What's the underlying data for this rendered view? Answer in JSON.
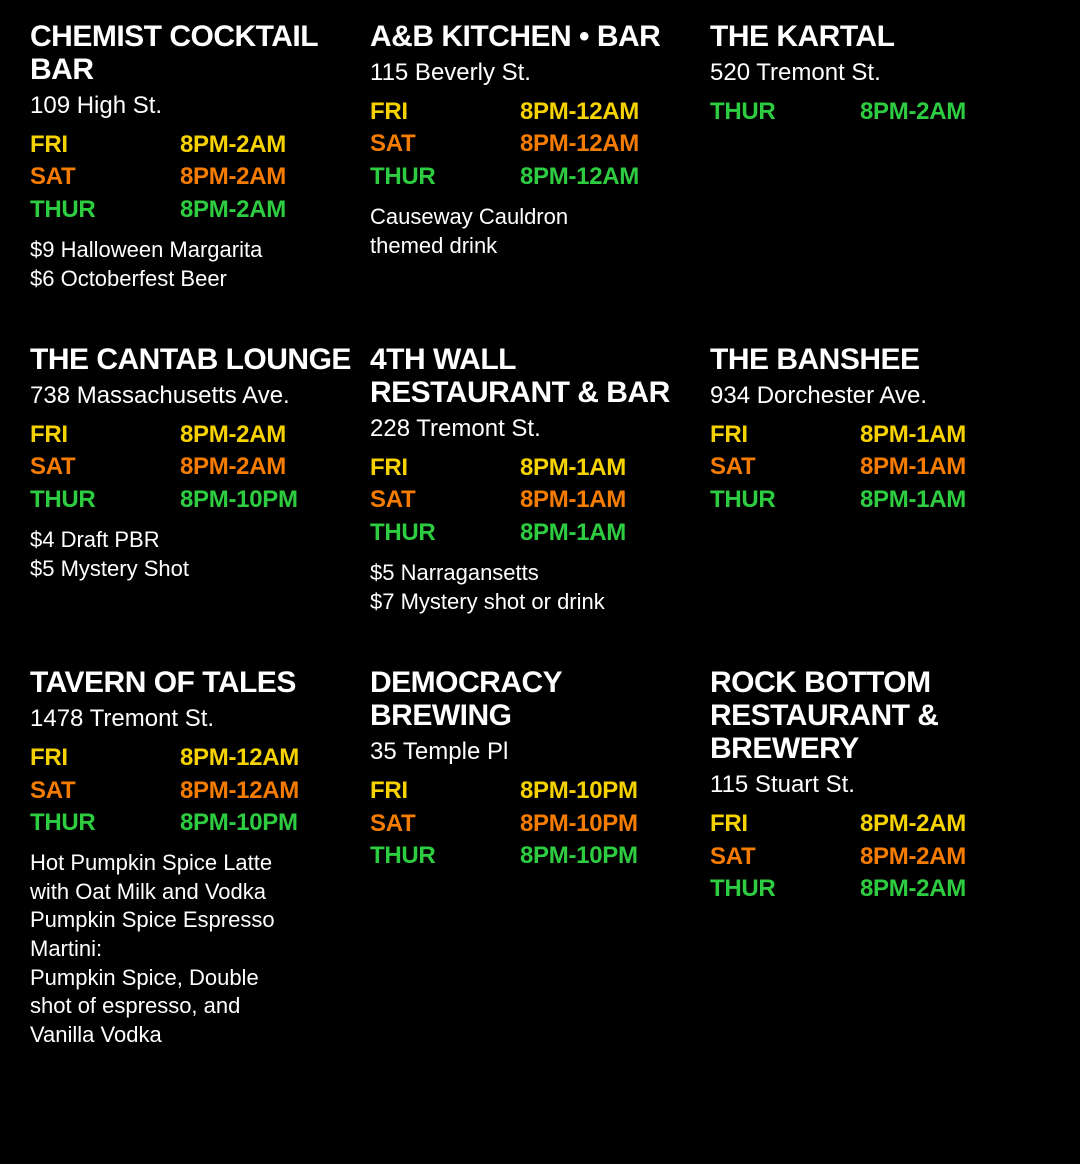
{
  "colors": {
    "fri": "#f5d200",
    "sat": "#f57c00",
    "thur": "#2ecc40",
    "text": "#ffffff",
    "bg": "#000000"
  },
  "venues": [
    {
      "name": "CHEMIST COCKTAIL BAR",
      "address": "109 High St.",
      "hours": [
        {
          "day": "FRI",
          "time": "8PM-2AM",
          "color": "fri"
        },
        {
          "day": "SAT",
          "time": "8PM-2AM",
          "color": "sat"
        },
        {
          "day": "THUR",
          "time": "8PM-2AM",
          "color": "thur"
        }
      ],
      "specials": [
        "$9 Halloween Margarita",
        "$6 Octoberfest Beer"
      ]
    },
    {
      "name": "A&B KITCHEN • BAR",
      "address": "115 Beverly St.",
      "hours": [
        {
          "day": "FRI",
          "time": "8PM-12AM",
          "color": "fri"
        },
        {
          "day": "SAT",
          "time": "8PM-12AM",
          "color": "sat"
        },
        {
          "day": "THUR",
          "time": "8PM-12AM",
          "color": "thur"
        }
      ],
      "specials": [
        "Causeway Cauldron",
        "themed drink"
      ]
    },
    {
      "name": "THE KARTAL",
      "address": "520 Tremont St.",
      "hours": [
        {
          "day": "THUR",
          "time": "8PM-2AM",
          "color": "thur"
        }
      ],
      "specials": []
    },
    {
      "name": "THE CANTAB LOUNGE",
      "address": "738 Massachusetts Ave.",
      "hours": [
        {
          "day": "FRI",
          "time": "8PM-2AM",
          "color": "fri"
        },
        {
          "day": "SAT",
          "time": "8PM-2AM",
          "color": "sat"
        },
        {
          "day": "THUR",
          "time": "8PM-10PM",
          "color": "thur"
        }
      ],
      "specials": [
        "$4 Draft PBR",
        "$5 Mystery Shot"
      ]
    },
    {
      "name": "4TH WALL RESTAURANT & BAR",
      "address": "228 Tremont St.",
      "hours": [
        {
          "day": "FRI",
          "time": "8PM-1AM",
          "color": "fri"
        },
        {
          "day": "SAT",
          "time": "8PM-1AM",
          "color": "sat"
        },
        {
          "day": "THUR",
          "time": "8PM-1AM",
          "color": "thur"
        }
      ],
      "specials": [
        "$5 Narragansetts",
        "$7 Mystery shot or drink"
      ]
    },
    {
      "name": "THE BANSHEE",
      "address": "934 Dorchester Ave.",
      "hours": [
        {
          "day": "FRI",
          "time": "8PM-1AM",
          "color": "fri"
        },
        {
          "day": "SAT",
          "time": "8PM-1AM",
          "color": "sat"
        },
        {
          "day": "THUR",
          "time": "8PM-1AM",
          "color": "thur"
        }
      ],
      "specials": []
    },
    {
      "name": "TAVERN OF TALES",
      "address": "1478 Tremont St.",
      "hours": [
        {
          "day": "FRI",
          "time": "8PM-12AM",
          "color": "fri"
        },
        {
          "day": "SAT",
          "time": "8PM-12AM",
          "color": "sat"
        },
        {
          "day": "THUR",
          "time": "8PM-10PM",
          "color": "thur"
        }
      ],
      "specials": [
        "Hot Pumpkin Spice Latte",
        "with Oat Milk and Vodka",
        "Pumpkin Spice Espresso",
        "Martini:",
        "Pumpkin Spice, Double",
        "shot of espresso, and",
        "Vanilla Vodka"
      ]
    },
    {
      "name": "DEMOCRACY BREWING",
      "address": "35 Temple Pl",
      "hours": [
        {
          "day": "FRI",
          "time": "8PM-10PM",
          "color": "fri"
        },
        {
          "day": "SAT",
          "time": "8PM-10PM",
          "color": "sat"
        },
        {
          "day": "THUR",
          "time": "8PM-10PM",
          "color": "thur"
        }
      ],
      "specials": []
    },
    {
      "name": "ROCK BOTTOM RESTAURANT & BREWERY",
      "address": "115 Stuart St.",
      "hours": [
        {
          "day": "FRI",
          "time": "8PM-2AM",
          "color": "fri"
        },
        {
          "day": "SAT",
          "time": "8PM-2AM",
          "color": "sat"
        },
        {
          "day": "THUR",
          "time": "8PM-2AM",
          "color": "thur"
        }
      ],
      "specials": []
    }
  ]
}
